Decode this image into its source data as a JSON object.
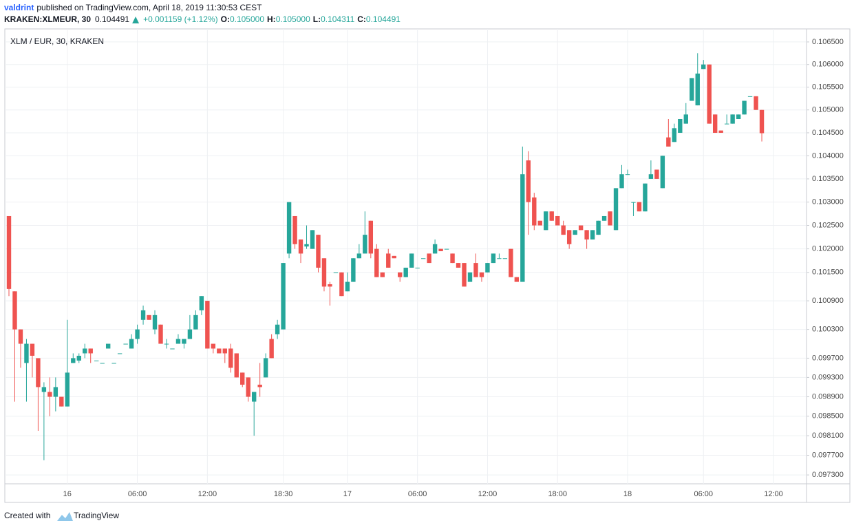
{
  "header": {
    "publisher": "valdrint",
    "published": "published on TradingView.com, April 18, 2019 11:30:53 CEST",
    "symbol": "KRAKEN:XLMEUR, 30",
    "last": "0.104491",
    "change": "+0.001159 (+1.12%)",
    "open_label": "O:",
    "open": "0.105000",
    "high_label": "H:",
    "high": "0.105000",
    "low_label": "L:",
    "low": "0.104311",
    "close_label": "C:",
    "close": "0.104491"
  },
  "footer": {
    "created": "Created with",
    "brand": "TradingView"
  },
  "chart_data": {
    "type": "candlestick",
    "title": "XLM / EUR, 30, KRAKEN",
    "up_color": "#26a69a",
    "down_color": "#ef5350",
    "log_scale": true,
    "grid": true,
    "ylim": [
      0.09712,
      0.10679
    ],
    "yticks": [
      {
        "value": 0.0973,
        "label": "0.097300"
      },
      {
        "value": 0.0977,
        "label": "0.097700"
      },
      {
        "value": 0.0981,
        "label": "0.098100"
      },
      {
        "value": 0.0985,
        "label": "0.098500"
      },
      {
        "value": 0.0989,
        "label": "0.098900"
      },
      {
        "value": 0.0993,
        "label": "0.099300"
      },
      {
        "value": 0.0997,
        "label": "0.099700"
      },
      {
        "value": 0.1003,
        "label": "0.100300"
      },
      {
        "value": 0.1009,
        "label": "0.100900"
      },
      {
        "value": 0.1015,
        "label": "0.101500"
      },
      {
        "value": 0.102,
        "label": "0.102000"
      },
      {
        "value": 0.1025,
        "label": "0.102500"
      },
      {
        "value": 0.103,
        "label": "0.103000"
      },
      {
        "value": 0.1035,
        "label": "0.103500"
      },
      {
        "value": 0.104,
        "label": "0.104000"
      },
      {
        "value": 0.1045,
        "label": "0.104500"
      },
      {
        "value": 0.105,
        "label": "0.105000"
      },
      {
        "value": 0.1055,
        "label": "0.105500"
      },
      {
        "value": 0.106,
        "label": "0.106000"
      },
      {
        "value": 0.1065,
        "label": "0.106500"
      }
    ],
    "categories": [
      null,
      null,
      null,
      null,
      null,
      null,
      null,
      null,
      null,
      null,
      "16",
      null,
      null,
      null,
      null,
      null,
      null,
      null,
      null,
      null,
      null,
      null,
      "06:00",
      null,
      null,
      null,
      null,
      null,
      null,
      null,
      null,
      null,
      null,
      null,
      "12:00",
      null,
      null,
      null,
      null,
      null,
      null,
      null,
      null,
      null,
      null,
      null,
      null,
      "18:30",
      null,
      null,
      null,
      null,
      null,
      null,
      null,
      null,
      null,
      null,
      "17",
      null,
      null,
      null,
      null,
      null,
      null,
      null,
      null,
      null,
      null,
      null,
      "06:00",
      null,
      null,
      null,
      null,
      null,
      null,
      null,
      null,
      null,
      null,
      null,
      "12:00",
      null,
      null,
      null,
      null,
      null,
      null,
      null,
      null,
      null,
      null,
      null,
      "18:00",
      null,
      null,
      null,
      null,
      null,
      null,
      null,
      null,
      null,
      null,
      null,
      "18",
      null,
      null,
      null,
      null,
      null,
      null,
      null,
      null,
      null,
      null,
      null,
      null,
      "06:00",
      null,
      null,
      null,
      null,
      null,
      null,
      null,
      null,
      null,
      null,
      null,
      "12:00"
    ],
    "open": [
      0.1027,
      0.1011,
      0.1003,
      0.0996,
      0.1,
      0.0997,
      0.099,
      0.099,
      0.0989,
      0.0989,
      0.0987,
      0.0996,
      0.09965,
      0.0998,
      0.0999,
      0.09965,
      0.0996,
      0.0999,
      0.0996,
      0.0998,
      0.1,
      0.0999,
      0.1001,
      0.1005,
      0.1006,
      0.1003,
      0.1004,
      0.1,
      0.0999,
      0.1,
      0.1,
      0.1001,
      0.1003,
      0.1007,
      0.1009,
      0.1,
      0.0999,
      0.0999,
      0.0999,
      0.0998,
      0.0994,
      0.0993,
      0.0988,
      0.09915,
      0.0993,
      0.1001,
      0.1002,
      0.1003,
      0.1019,
      0.1027,
      0.1022,
      0.10205,
      0.102,
      0.1023,
      0.1018,
      0.10125,
      0.1015,
      0.1015,
      0.1011,
      0.1013,
      0.1018,
      0.1019,
      0.1026,
      0.102,
      0.1015,
      0.1019,
      0.10185,
      0.1015,
      0.1014,
      0.1016,
      0.1016,
      0.1018,
      0.1019,
      0.1019,
      0.102,
      0.102,
      0.1019,
      0.1017,
      0.1017,
      0.1013,
      0.1017,
      0.1015,
      0.1015,
      0.1017,
      0.1018,
      0.1018,
      0.102,
      0.1014,
      0.1013,
      0.1039,
      0.1031,
      0.1026,
      0.1024,
      0.1028,
      0.1027,
      0.1025,
      0.1024,
      0.1023,
      0.1025,
      0.1024,
      0.1022,
      0.1023,
      0.1026,
      0.1028,
      0.1024,
      0.1033,
      0.1036,
      0.103,
      0.103,
      0.1028,
      0.1035,
      0.1037,
      0.1033,
      0.1044,
      0.1043,
      0.1045,
      0.1047,
      0.1052,
      0.1051,
      0.1059,
      0.106,
      0.1049,
      0.10455,
      0.1047,
      0.1047,
      0.1048,
      0.1049,
      0.1053,
      0.1053,
      0.105,
      null,
      null
    ],
    "high": [
      0.1027,
      0.1011,
      0.1003,
      0.1001,
      0.1,
      0.0997,
      0.0992,
      0.0993,
      0.0993,
      0.0989,
      0.1005,
      0.0998,
      0.0998,
      0.1,
      0.0999,
      0.09965,
      0.0996,
      0.1,
      0.0996,
      0.0998,
      0.1,
      0.1002,
      0.1004,
      0.1008,
      0.1006,
      0.1007,
      0.1004,
      0.1001,
      0.0999,
      0.1002,
      0.1001,
      0.1006,
      0.1007,
      0.101,
      0.1009,
      0.1,
      0.0999,
      0.0999,
      0.1,
      0.0998,
      0.0994,
      0.0993,
      0.099,
      0.0996,
      0.0998,
      0.1002,
      0.1005,
      0.1017,
      0.103,
      0.1027,
      0.1022,
      0.1025,
      0.1024,
      0.1023,
      0.1018,
      0.1013,
      0.1015,
      0.1015,
      0.1015,
      0.1018,
      0.1021,
      0.1028,
      0.1026,
      0.1021,
      0.1015,
      0.102,
      0.10185,
      0.1015,
      0.1016,
      0.1019,
      0.1016,
      0.1018,
      0.1019,
      0.1022,
      0.102,
      0.102,
      0.1019,
      0.1017,
      0.1017,
      0.1015,
      0.1019,
      0.1015,
      0.1017,
      0.1019,
      0.1019,
      0.1018,
      0.102,
      0.1014,
      0.1042,
      0.1041,
      0.1032,
      0.1026,
      0.1028,
      0.1028,
      0.1027,
      0.1026,
      0.1024,
      0.1024,
      0.1025,
      0.1024,
      0.1024,
      0.1026,
      0.1027,
      0.1028,
      0.1033,
      0.1038,
      0.1037,
      0.103,
      0.103,
      0.1034,
      0.1039,
      0.1037,
      0.104,
      0.1048,
      0.1047,
      0.1048,
      0.10515,
      0.1057,
      0.10625,
      0.1061,
      0.106,
      0.1049,
      0.10455,
      0.1049,
      0.1049,
      0.1049,
      0.1052,
      0.1053,
      0.1053,
      0.105,
      null,
      null
    ],
    "low": [
      0.101,
      0.0988,
      0.0995,
      0.0988,
      0.0993,
      0.0982,
      0.0976,
      0.0985,
      0.0986,
      0.0987,
      0.0987,
      0.0996,
      0.0996,
      0.0997,
      0.0996,
      0.09965,
      0.0996,
      0.0999,
      0.0996,
      0.0998,
      0.1,
      0.0999,
      0.1,
      0.1004,
      0.1005,
      0.1002,
      0.1,
      0.0999,
      0.0999,
      0.1,
      0.0999,
      0.1001,
      0.1003,
      0.1006,
      0.0999,
      0.0998,
      0.0998,
      0.0996,
      0.0994,
      0.0993,
      0.0991,
      0.0988,
      0.0981,
      0.0989,
      0.0993,
      0.0997,
      0.1001,
      0.1003,
      0.1018,
      0.102,
      0.1017,
      0.102,
      0.102,
      0.1015,
      0.1011,
      0.1008,
      0.1015,
      0.101,
      0.1011,
      0.1013,
      0.1018,
      0.1019,
      0.1018,
      0.1014,
      0.1014,
      0.1016,
      0.1018,
      0.1013,
      0.1014,
      0.1016,
      0.1016,
      0.1018,
      0.1017,
      0.1019,
      0.10195,
      0.102,
      0.1017,
      0.1016,
      0.1012,
      0.1013,
      0.1014,
      0.1013,
      0.1015,
      0.1017,
      0.1018,
      0.1018,
      0.1014,
      0.1013,
      0.1013,
      0.1023,
      0.1024,
      0.1025,
      0.1024,
      0.1026,
      0.1025,
      0.1023,
      0.102,
      0.1023,
      0.1024,
      0.102,
      0.1022,
      0.1023,
      0.1026,
      0.1025,
      0.1024,
      0.1033,
      0.1036,
      0.1027,
      0.1028,
      0.1028,
      0.1035,
      0.1035,
      0.1033,
      0.1042,
      0.1043,
      0.1045,
      0.1047,
      0.1052,
      0.1051,
      0.1059,
      0.1047,
      0.1045,
      0.1045,
      0.1047,
      0.1047,
      0.1048,
      0.1049,
      0.1053,
      0.105,
      0.104311,
      null,
      null
    ],
    "close": [
      0.10115,
      0.1003,
      0.1,
      0.1,
      0.09975,
      0.0991,
      0.0991,
      0.0989,
      0.0991,
      0.0987,
      0.0994,
      0.0997,
      0.09975,
      0.0999,
      0.0998,
      0.09965,
      0.0996,
      0.1,
      0.0996,
      0.0998,
      0.1,
      0.1001,
      0.1003,
      0.1007,
      0.1005,
      0.1006,
      0.1,
      0.1,
      0.0999,
      0.1001,
      0.1001,
      0.1003,
      0.1006,
      0.101,
      0.0999,
      0.0999,
      0.0998,
      0.0998,
      0.0995,
      0.0993,
      0.09915,
      0.0989,
      0.099,
      0.0991,
      0.0997,
      0.0997,
      0.1004,
      0.1017,
      0.103,
      0.1021,
      0.1019,
      0.1021,
      0.1024,
      0.1016,
      0.1012,
      0.1012,
      0.1015,
      0.101,
      0.1013,
      0.1018,
      0.1019,
      0.1023,
      0.1019,
      0.1014,
      0.1014,
      0.1016,
      0.1018,
      0.1014,
      0.1016,
      0.1019,
      0.1016,
      0.1018,
      0.1017,
      0.1021,
      0.10195,
      0.102,
      0.1017,
      0.1016,
      0.1012,
      0.1015,
      0.1014,
      0.1014,
      0.1017,
      0.1019,
      0.1018,
      0.1018,
      0.1014,
      0.1013,
      0.1036,
      0.103,
      0.1025,
      0.1025,
      0.1028,
      0.1026,
      0.1025,
      0.1023,
      0.1021,
      0.1024,
      0.1024,
      0.1022,
      0.1024,
      0.1026,
      0.1027,
      0.1025,
      0.1033,
      0.1036,
      0.1036,
      0.103,
      0.1028,
      0.1034,
      0.1036,
      0.1035,
      0.104,
      0.1042,
      0.1046,
      0.1048,
      0.1049,
      0.1057,
      0.1058,
      0.106,
      0.1047,
      0.1045,
      0.1045,
      0.1047,
      0.1049,
      0.1049,
      0.1052,
      0.1053,
      0.105,
      0.104491,
      null,
      null
    ]
  }
}
